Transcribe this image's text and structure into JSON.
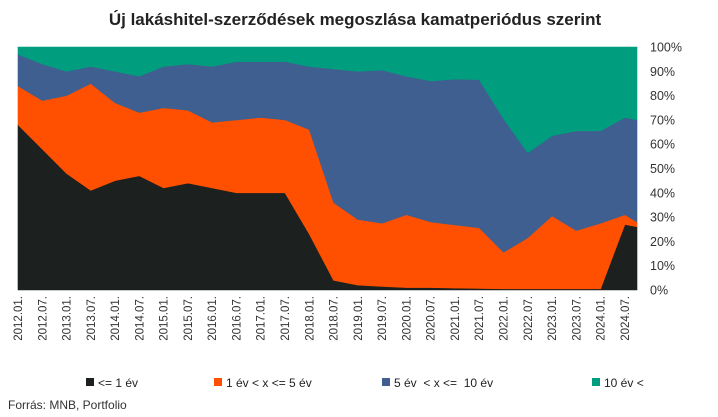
{
  "chart_data": {
    "type": "area",
    "stacked": true,
    "title": "Új lakáshitel-szerződések megoszlása kamatperiódus szerint",
    "source": "Forrás: MNB, Portfolio",
    "y_axis": {
      "min": 0,
      "max": 100,
      "unit": "%",
      "ticks": [
        "0%",
        "10%",
        "20%",
        "30%",
        "40%",
        "50%",
        "60%",
        "70%",
        "80%",
        "90%",
        "100%"
      ],
      "position": "right"
    },
    "x_tick_labels": [
      "2012.01.",
      "2012.07.",
      "2013.01.",
      "2013.07.",
      "2014.01.",
      "2014.07.",
      "2015.01.",
      "2015.07.",
      "2016.01.",
      "2016.07.",
      "2017.01.",
      "2017.07.",
      "2018.01.",
      "2018.07.",
      "2019.01.",
      "2019.07.",
      "2020.01.",
      "2020.07.",
      "2021.01.",
      "2021.07.",
      "2022.01.",
      "2022.07.",
      "2023.01.",
      "2023.07.",
      "2024.01.",
      "2024.07."
    ],
    "x_dates": [
      "2012.01",
      "2012.07",
      "2013.01",
      "2013.07",
      "2014.01",
      "2014.07",
      "2015.01",
      "2015.07",
      "2016.01",
      "2016.07",
      "2017.01",
      "2017.07",
      "2018.01",
      "2018.07",
      "2019.01",
      "2019.07",
      "2020.01",
      "2020.07",
      "2021.01",
      "2021.07",
      "2022.01",
      "2022.07",
      "2023.01",
      "2023.07",
      "2024.01",
      "2024.07",
      "2024.10"
    ],
    "legend_position": "bottom",
    "series": [
      {
        "name": "<= 1 év",
        "color": "#1c211f",
        "values": [
          68,
          58,
          48,
          41,
          45,
          47,
          42,
          44,
          42,
          40,
          40,
          40,
          23,
          4,
          2,
          1.5,
          1,
          1,
          0.8,
          0.6,
          0.5,
          0.5,
          0.5,
          0.5,
          0.5,
          27,
          26
        ]
      },
      {
        "name": "1 év < x <= 5 év",
        "color": "#fe5000",
        "values": [
          16,
          20,
          32,
          44,
          32,
          26,
          33,
          30,
          27,
          30,
          31,
          30,
          43,
          32,
          27,
          26,
          30,
          27,
          26,
          25,
          15,
          21,
          30,
          24,
          27,
          4,
          2
        ]
      },
      {
        "name": "5 év  < x <=  10 év",
        "color": "#3e5f8f",
        "values": [
          13,
          15,
          10,
          7,
          13,
          15,
          17,
          19,
          23,
          24,
          23,
          24,
          26,
          55,
          61,
          63,
          57,
          58,
          60,
          61,
          55,
          35,
          33,
          41,
          38,
          40,
          42
        ]
      },
      {
        "name": "10 év <",
        "color": "#009e7e",
        "values": [
          3,
          7,
          10,
          8,
          10,
          12,
          8,
          7,
          8,
          6,
          6,
          6,
          8,
          9,
          10,
          9.5,
          12,
          14,
          13.2,
          13.4,
          29.5,
          43.5,
          36.5,
          34.5,
          34.5,
          29,
          30
        ]
      }
    ]
  }
}
